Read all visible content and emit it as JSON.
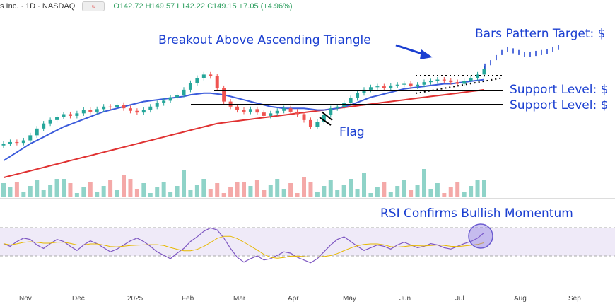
{
  "header": {
    "symbol": "s Inc. · 1D · NASDAQ",
    "ohlc": "O142.72  H149.57  L142.22  C149.15  +7.05 (+4.96%)"
  },
  "annotations": {
    "breakout": "Breakout Above Ascending Triangle",
    "target": "Bars Pattern Target: $",
    "support1": "Support Level: $",
    "support2": "Support Level: $",
    "flag": "Flag",
    "rsi": "RSI Confirms Bullish Momentum"
  },
  "colors": {
    "up": "#26a69a",
    "down": "#ef5350",
    "ma50": "#3b5bdb",
    "ma200": "#e03131",
    "annotation": "#1b3fd1",
    "rsi": "#7e57c2",
    "rsi_ma": "#e6b800"
  },
  "chart_data": {
    "type": "candlestick",
    "x_ticks": [
      "Nov",
      "Dec",
      "2025",
      "Feb",
      "Mar",
      "Apr",
      "May",
      "Jun",
      "Jul",
      "Aug",
      "Sep"
    ],
    "price": {
      "closes": [
        60,
        62,
        61,
        64,
        70,
        78,
        84,
        88,
        92,
        95,
        93,
        96,
        100,
        98,
        101,
        104,
        103,
        106,
        102,
        99,
        97,
        100,
        104,
        108,
        111,
        115,
        118,
        124,
        132,
        138,
        142,
        140,
        126,
        110,
        104,
        100,
        98,
        101,
        97,
        93,
        96,
        99,
        102,
        98,
        95,
        88,
        80,
        86,
        94,
        102,
        104,
        108,
        114,
        120,
        124,
        127,
        128,
        126,
        129,
        130,
        131,
        128,
        130,
        133,
        134,
        136,
        135,
        133,
        131,
        134,
        138,
        142,
        149
      ],
      "ma50": [
        40,
        45,
        50,
        55,
        60,
        64,
        68,
        72,
        76,
        80,
        83,
        86,
        89,
        92,
        95,
        98,
        100,
        102,
        104,
        106,
        108,
        110,
        111,
        112,
        113,
        114,
        115,
        116,
        118,
        119,
        120,
        120,
        119,
        118,
        116,
        114,
        112,
        110,
        108,
        106,
        104,
        103,
        102,
        102,
        102,
        102,
        101,
        100,
        100,
        101,
        102,
        104,
        106,
        109,
        112,
        115,
        117,
        119,
        121,
        123,
        125,
        126,
        127,
        128,
        129,
        130,
        131,
        131,
        132,
        133,
        134,
        135,
        136
      ],
      "ma200": [
        20,
        22,
        24,
        26,
        28,
        30,
        32,
        34,
        36,
        38,
        40,
        42,
        44,
        46,
        48,
        50,
        52,
        54,
        56,
        58,
        60,
        62,
        64,
        66,
        68,
        70,
        72,
        74,
        76,
        78,
        80,
        82,
        84,
        85,
        86,
        87,
        88,
        89,
        90,
        91,
        92,
        93,
        94,
        95,
        96,
        97,
        98,
        99,
        100,
        101,
        102,
        103,
        104,
        105,
        106,
        107,
        108,
        109,
        110,
        111,
        112,
        113,
        114,
        115,
        116,
        117,
        118,
        119,
        120,
        121,
        122,
        123,
        124
      ],
      "projection": [
        152,
        156,
        162,
        168,
        172,
        170,
        168,
        166,
        166,
        167,
        168,
        169,
        172,
        174
      ]
    },
    "rsi": {
      "values": [
        52,
        48,
        55,
        60,
        58,
        50,
        45,
        52,
        58,
        55,
        48,
        42,
        50,
        56,
        52,
        46,
        40,
        44,
        50,
        56,
        60,
        55,
        48,
        40,
        35,
        30,
        38,
        45,
        55,
        62,
        70,
        75,
        72,
        60,
        45,
        32,
        25,
        30,
        34,
        28,
        30,
        35,
        40,
        38,
        32,
        28,
        24,
        30,
        40,
        50,
        58,
        62,
        55,
        48,
        42,
        46,
        50,
        48,
        44,
        50,
        54,
        50,
        46,
        48,
        52,
        50,
        46,
        44,
        48,
        52,
        55,
        60,
        68
      ]
    }
  }
}
